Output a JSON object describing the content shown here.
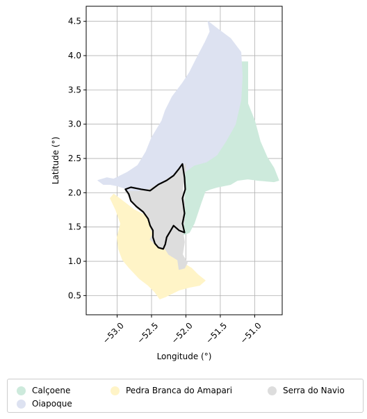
{
  "map": {
    "xlabel": "Longitude (°)",
    "ylabel": "Latitude (°)",
    "xlim": [
      -53.45,
      -50.6
    ],
    "ylim": [
      0.22,
      4.72
    ],
    "xticks": [
      -53.0,
      -52.5,
      -52.0,
      -51.5,
      -51.0
    ],
    "xtick_labels": [
      "−53.0",
      "−52.5",
      "−52.0",
      "−51.5",
      "−51.0"
    ],
    "yticks": [
      0.5,
      1.0,
      1.5,
      2.0,
      2.5,
      3.0,
      3.5,
      4.0,
      4.5
    ],
    "ytick_labels": [
      "0.5",
      "1.0",
      "1.5",
      "2.0",
      "2.5",
      "3.0",
      "3.5",
      "4.0",
      "4.5"
    ],
    "grid": true,
    "legend_position": "bottom",
    "regions": [
      {
        "name": "Calçoene",
        "color": "#cdeadc",
        "coords": [
          [
            -51.28,
            3.91
          ],
          [
            -51.1,
            3.91
          ],
          [
            -51.1,
            3.3
          ],
          [
            -51.0,
            3.05
          ],
          [
            -50.92,
            2.75
          ],
          [
            -50.82,
            2.52
          ],
          [
            -50.72,
            2.36
          ],
          [
            -50.65,
            2.18
          ],
          [
            -50.72,
            2.16
          ],
          [
            -50.95,
            2.18
          ],
          [
            -51.1,
            2.2
          ],
          [
            -51.25,
            2.18
          ],
          [
            -51.35,
            2.12
          ],
          [
            -51.45,
            2.1
          ],
          [
            -51.55,
            2.08
          ],
          [
            -51.65,
            2.05
          ],
          [
            -51.72,
            2.02
          ],
          [
            -51.78,
            1.85
          ],
          [
            -51.83,
            1.7
          ],
          [
            -51.88,
            1.55
          ],
          [
            -51.95,
            1.42
          ],
          [
            -52.05,
            1.38
          ],
          [
            -52.02,
            1.55
          ],
          [
            -52.03,
            1.8
          ],
          [
            -52.0,
            2.05
          ],
          [
            -52.02,
            2.3
          ],
          [
            -52.0,
            2.42
          ],
          [
            -51.88,
            2.4
          ],
          [
            -51.7,
            2.45
          ],
          [
            -51.55,
            2.55
          ],
          [
            -51.42,
            2.75
          ],
          [
            -51.3,
            3.0
          ],
          [
            -51.25,
            3.4
          ],
          [
            -51.28,
            3.7
          ]
        ]
      },
      {
        "name": "Oiapoque",
        "color": "#dde2f1",
        "coords": [
          [
            -51.68,
            4.5
          ],
          [
            -51.55,
            4.4
          ],
          [
            -51.35,
            4.25
          ],
          [
            -51.2,
            4.05
          ],
          [
            -51.18,
            3.7
          ],
          [
            -51.2,
            3.35
          ],
          [
            -51.28,
            3.0
          ],
          [
            -51.42,
            2.75
          ],
          [
            -51.55,
            2.55
          ],
          [
            -51.7,
            2.45
          ],
          [
            -51.88,
            2.4
          ],
          [
            -52.02,
            2.3
          ],
          [
            -52.12,
            2.25
          ],
          [
            -52.35,
            2.15
          ],
          [
            -52.55,
            2.05
          ],
          [
            -52.7,
            2.02
          ],
          [
            -52.82,
            2.02
          ],
          [
            -52.9,
            2.07
          ],
          [
            -53.0,
            2.1
          ],
          [
            -53.1,
            2.12
          ],
          [
            -53.2,
            2.12
          ],
          [
            -53.28,
            2.18
          ],
          [
            -53.15,
            2.22
          ],
          [
            -53.05,
            2.2
          ],
          [
            -52.85,
            2.3
          ],
          [
            -52.7,
            2.4
          ],
          [
            -52.58,
            2.6
          ],
          [
            -52.5,
            2.8
          ],
          [
            -52.35,
            3.05
          ],
          [
            -52.3,
            3.2
          ],
          [
            -52.2,
            3.4
          ],
          [
            -52.05,
            3.6
          ],
          [
            -51.95,
            3.75
          ],
          [
            -51.85,
            3.95
          ],
          [
            -51.72,
            4.2
          ],
          [
            -51.65,
            4.35
          ]
        ]
      },
      {
        "name": "Pedra Branca do Amapari",
        "color": "#fff4c7",
        "coords": [
          [
            -53.05,
            1.98
          ],
          [
            -52.88,
            1.85
          ],
          [
            -52.75,
            1.75
          ],
          [
            -52.55,
            1.65
          ],
          [
            -52.52,
            1.5
          ],
          [
            -52.48,
            1.4
          ],
          [
            -52.52,
            1.32
          ],
          [
            -52.45,
            1.25
          ],
          [
            -52.38,
            1.2
          ],
          [
            -52.28,
            1.18
          ],
          [
            -52.25,
            1.1
          ],
          [
            -52.08,
            1.05
          ],
          [
            -52.0,
            0.95
          ],
          [
            -51.92,
            0.9
          ],
          [
            -51.82,
            0.8
          ],
          [
            -51.72,
            0.72
          ],
          [
            -51.8,
            0.65
          ],
          [
            -51.95,
            0.62
          ],
          [
            -52.1,
            0.58
          ],
          [
            -52.3,
            0.48
          ],
          [
            -52.38,
            0.45
          ],
          [
            -52.45,
            0.55
          ],
          [
            -52.55,
            0.65
          ],
          [
            -52.68,
            0.75
          ],
          [
            -52.82,
            0.9
          ],
          [
            -52.92,
            1.02
          ],
          [
            -52.98,
            1.18
          ],
          [
            -53.0,
            1.35
          ],
          [
            -52.95,
            1.55
          ],
          [
            -53.02,
            1.75
          ],
          [
            -53.1,
            1.92
          ]
        ]
      },
      {
        "name": "Serra do Navio",
        "color": "#dddddd",
        "coords": [
          [
            -52.0,
            2.42
          ],
          [
            -52.02,
            2.22
          ],
          [
            -52.05,
            2.05
          ],
          [
            -52.02,
            1.85
          ],
          [
            -52.02,
            1.6
          ],
          [
            -52.05,
            1.45
          ],
          [
            -52.02,
            1.28
          ],
          [
            -52.05,
            1.1
          ],
          [
            -51.98,
            0.98
          ],
          [
            -52.02,
            0.9
          ],
          [
            -52.1,
            0.88
          ],
          [
            -52.12,
            1.02
          ],
          [
            -52.25,
            1.1
          ],
          [
            -52.3,
            1.18
          ],
          [
            -52.38,
            1.2
          ],
          [
            -52.45,
            1.25
          ],
          [
            -52.52,
            1.32
          ],
          [
            -52.48,
            1.4
          ],
          [
            -52.52,
            1.5
          ],
          [
            -52.55,
            1.65
          ],
          [
            -52.72,
            1.78
          ],
          [
            -52.8,
            1.9
          ],
          [
            -52.88,
            2.02
          ],
          [
            -52.7,
            2.02
          ],
          [
            -52.55,
            2.05
          ],
          [
            -52.35,
            2.15
          ],
          [
            -52.15,
            2.28
          ],
          [
            -52.05,
            2.38
          ]
        ]
      }
    ],
    "highlight_outline": {
      "color": "#000000",
      "coords": [
        [
          -52.05,
          2.42
        ],
        [
          -52.02,
          2.22
        ],
        [
          -52.01,
          2.05
        ],
        [
          -52.05,
          1.92
        ],
        [
          -52.02,
          1.7
        ],
        [
          -52.05,
          1.55
        ],
        [
          -52.02,
          1.42
        ],
        [
          -52.1,
          1.45
        ],
        [
          -52.18,
          1.52
        ],
        [
          -52.22,
          1.45
        ],
        [
          -52.28,
          1.35
        ],
        [
          -52.3,
          1.25
        ],
        [
          -52.33,
          1.18
        ],
        [
          -52.4,
          1.2
        ],
        [
          -52.45,
          1.26
        ],
        [
          -52.48,
          1.35
        ],
        [
          -52.48,
          1.45
        ],
        [
          -52.52,
          1.52
        ],
        [
          -52.55,
          1.62
        ],
        [
          -52.62,
          1.72
        ],
        [
          -52.72,
          1.8
        ],
        [
          -52.8,
          1.88
        ],
        [
          -52.83,
          1.98
        ],
        [
          -52.88,
          2.05
        ],
        [
          -52.8,
          2.08
        ],
        [
          -52.65,
          2.05
        ],
        [
          -52.52,
          2.03
        ],
        [
          -52.4,
          2.12
        ],
        [
          -52.28,
          2.18
        ],
        [
          -52.18,
          2.25
        ],
        [
          -52.1,
          2.35
        ]
      ]
    }
  }
}
